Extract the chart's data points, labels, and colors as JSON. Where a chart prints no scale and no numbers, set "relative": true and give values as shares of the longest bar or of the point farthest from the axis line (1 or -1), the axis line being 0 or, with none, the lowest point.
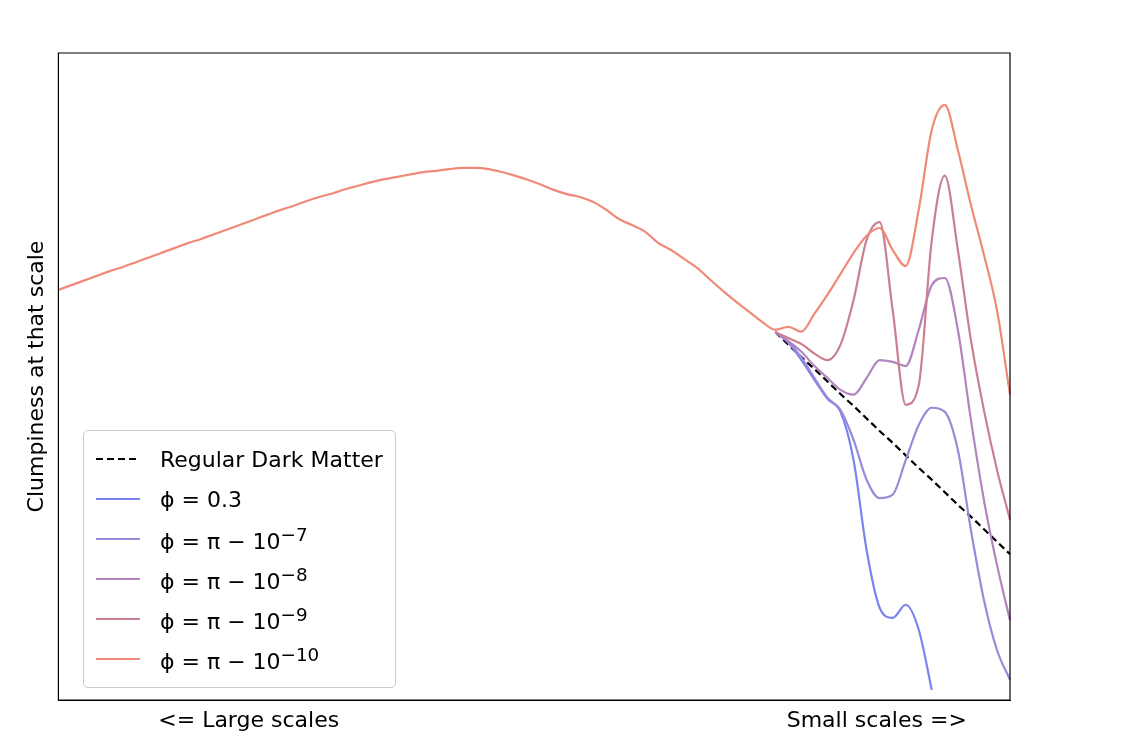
{
  "chart_data": {
    "type": "line",
    "relative": true,
    "ylabel": "Clumpiness at that scale",
    "annotations": [
      "<= Large scales",
      "Small scales =>"
    ],
    "legend": "bottom left",
    "grid": false,
    "marker": "none",
    "categories": [
      null,
      null,
      null,
      null,
      null,
      null,
      null,
      null,
      null,
      null,
      null,
      null,
      null,
      null,
      null,
      null,
      null,
      null,
      null,
      null,
      null,
      null,
      null,
      null,
      null,
      null,
      null,
      null,
      null,
      null,
      null,
      null,
      null,
      null,
      null,
      null,
      null,
      null,
      null,
      null,
      null,
      null,
      null,
      null,
      null,
      null,
      null,
      null,
      null,
      null,
      null,
      null,
      null,
      null,
      null,
      null,
      null,
      null,
      null,
      null,
      null,
      null,
      null,
      null,
      null,
      null,
      null,
      null,
      null,
      null,
      null,
      null,
      null,
      null
    ],
    "series": [
      {
        "name": "Regular Dark Matter",
        "color": "#000000",
        "line_style": "dashed",
        "values": [
          null,
          null,
          null,
          null,
          null,
          null,
          null,
          null,
          null,
          null,
          null,
          null,
          null,
          null,
          null,
          null,
          null,
          null,
          null,
          null,
          null,
          null,
          null,
          null,
          null,
          null,
          null,
          null,
          null,
          null,
          null,
          null,
          null,
          null,
          null,
          null,
          null,
          null,
          null,
          null,
          null,
          null,
          null,
          null,
          null,
          null,
          null,
          null,
          null,
          null,
          null,
          null,
          null,
          null,
          null,
          0.618,
          0.597,
          0.576,
          0.556,
          0.535,
          0.514,
          0.494,
          0.473,
          0.452,
          0.432,
          0.411,
          0.39,
          0.37,
          0.349,
          0.328,
          0.308,
          0.287,
          0.266,
          0.245
        ]
      },
      {
        "name": "ϕ = 0.3",
        "color": "#7b83f0",
        "line_style": "solid",
        "values": [
          null,
          null,
          null,
          null,
          null,
          null,
          null,
          null,
          null,
          null,
          null,
          null,
          null,
          null,
          null,
          null,
          null,
          null,
          null,
          null,
          null,
          null,
          null,
          null,
          null,
          null,
          null,
          null,
          null,
          null,
          null,
          null,
          null,
          null,
          null,
          null,
          null,
          null,
          null,
          null,
          null,
          null,
          null,
          null,
          null,
          null,
          null,
          null,
          null,
          null,
          null,
          null,
          null,
          null,
          null,
          0.618,
          0.6,
          0.571,
          0.538,
          0.506,
          0.484,
          0.403,
          0.252,
          0.155,
          0.138,
          0.16,
          0.118,
          0.017,
          null,
          null,
          null,
          null,
          null,
          null
        ]
      },
      {
        "name": "ϕ = π − 10$^{−7}$",
        "color": "#9a8ad8",
        "line_style": "solid",
        "values": [
          null,
          null,
          null,
          null,
          null,
          null,
          null,
          null,
          null,
          null,
          null,
          null,
          null,
          null,
          null,
          null,
          null,
          null,
          null,
          null,
          null,
          null,
          null,
          null,
          null,
          null,
          null,
          null,
          null,
          null,
          null,
          null,
          null,
          null,
          null,
          null,
          null,
          null,
          null,
          null,
          null,
          null,
          null,
          null,
          null,
          null,
          null,
          null,
          null,
          null,
          null,
          null,
          null,
          null,
          null,
          0.618,
          0.602,
          0.575,
          0.541,
          0.508,
          0.487,
          0.437,
          0.37,
          0.339,
          0.345,
          0.403,
          0.462,
          0.491,
          0.484,
          0.42,
          0.286,
          0.168,
          0.084,
          0.034
        ]
      },
      {
        "name": "ϕ = π − 10$^{−8}$",
        "color": "#b384c0",
        "line_style": "solid",
        "values": [
          null,
          null,
          null,
          null,
          null,
          null,
          null,
          null,
          null,
          null,
          null,
          null,
          null,
          null,
          null,
          null,
          null,
          null,
          null,
          null,
          null,
          null,
          null,
          null,
          null,
          null,
          null,
          null,
          null,
          null,
          null,
          null,
          null,
          null,
          null,
          null,
          null,
          null,
          null,
          null,
          null,
          null,
          null,
          null,
          null,
          null,
          null,
          null,
          null,
          null,
          null,
          null,
          null,
          null,
          null,
          0.618,
          0.603,
          0.585,
          0.561,
          0.541,
          0.521,
          0.513,
          0.541,
          0.571,
          0.568,
          0.561,
          0.622,
          0.697,
          0.709,
          0.622,
          0.471,
          0.336,
          0.227,
          0.134
        ]
      },
      {
        "name": "ϕ = π − 10$^{−9}$",
        "color": "#c9808f",
        "line_style": "solid",
        "values": [
          null,
          null,
          null,
          null,
          null,
          null,
          null,
          null,
          null,
          null,
          null,
          null,
          null,
          null,
          null,
          null,
          null,
          null,
          null,
          null,
          null,
          null,
          null,
          null,
          null,
          null,
          null,
          null,
          null,
          null,
          null,
          null,
          null,
          null,
          null,
          null,
          null,
          null,
          null,
          null,
          null,
          null,
          null,
          null,
          null,
          null,
          null,
          null,
          null,
          null,
          null,
          null,
          null,
          null,
          null,
          0.618,
          0.608,
          0.598,
          0.582,
          0.571,
          0.597,
          0.672,
          0.773,
          0.803,
          0.655,
          0.496,
          0.529,
          0.773,
          0.881,
          0.756,
          0.605,
          0.487,
          0.387,
          0.303
        ]
      },
      {
        "name": "ϕ = π − 10$^{−10}$",
        "color": "#f08a78",
        "line_style": "solid",
        "values": [
          0.689,
          0.697,
          0.705,
          0.713,
          0.721,
          0.728,
          0.736,
          0.744,
          0.752,
          0.76,
          0.768,
          0.775,
          0.783,
          0.791,
          0.799,
          0.807,
          0.815,
          0.823,
          0.83,
          0.838,
          0.845,
          0.851,
          0.858,
          0.864,
          0.87,
          0.875,
          0.879,
          0.883,
          0.887,
          0.889,
          0.892,
          0.894,
          0.894,
          0.892,
          0.887,
          0.881,
          0.874,
          0.866,
          0.857,
          0.85,
          0.845,
          0.837,
          0.824,
          0.808,
          0.798,
          0.787,
          0.768,
          0.756,
          0.741,
          0.726,
          0.706,
          0.687,
          0.669,
          0.652,
          0.635,
          0.622,
          0.627,
          0.619,
          0.649,
          0.681,
          0.716,
          0.751,
          0.78,
          0.793,
          0.756,
          0.729,
          0.824,
          0.958,
          1,
          0.924,
          0.832,
          0.748,
          0.655,
          0.513
        ]
      }
    ]
  }
}
